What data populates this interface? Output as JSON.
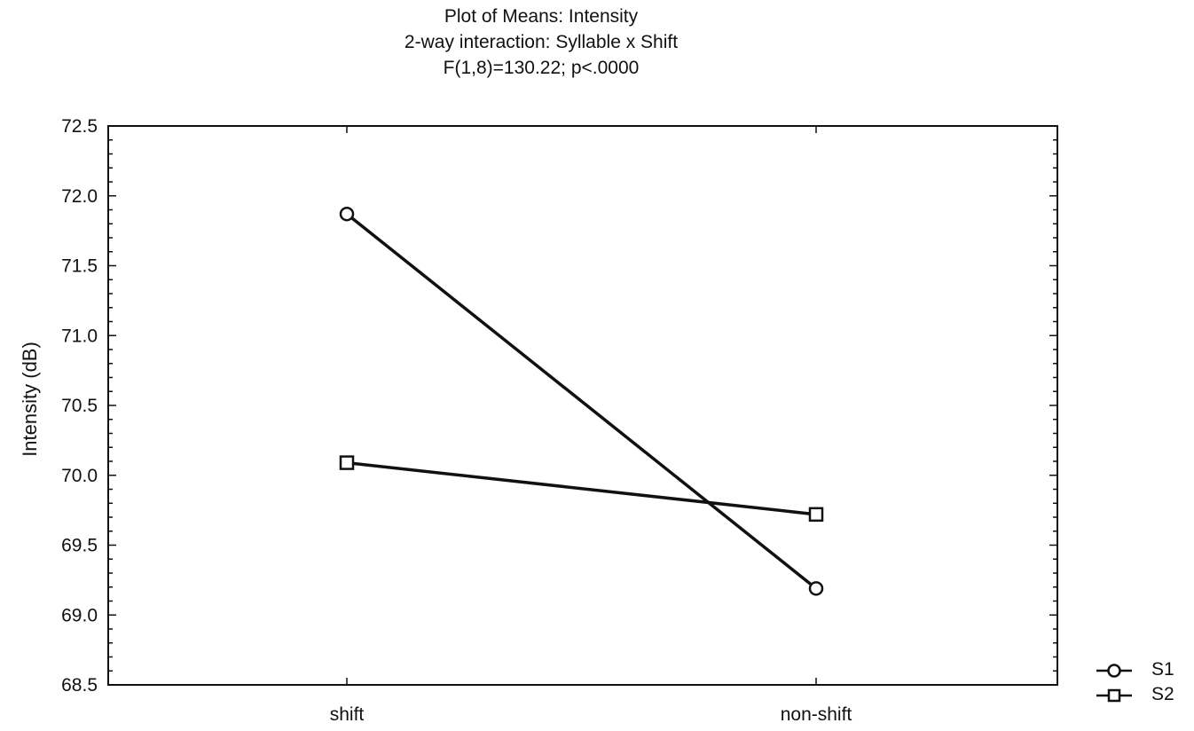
{
  "chart_data": {
    "type": "line",
    "title": "Plot of Means: Intensity",
    "subtitle": "2-way interaction: Syllable x Shift",
    "annotation": "F(1,8)=130.22; p<.0000",
    "xlabel": "",
    "ylabel": "Intensity (dB)",
    "categories": [
      "shift",
      "non-shift"
    ],
    "ylim": [
      68.5,
      72.5
    ],
    "yticks": [
      "72.5",
      "72.0",
      "71.5",
      "71.0",
      "70.5",
      "70.0",
      "69.5",
      "69.0",
      "68.5"
    ],
    "series": [
      {
        "name": "S1",
        "marker": "circle",
        "values": [
          71.87,
          69.19
        ]
      },
      {
        "name": "S2",
        "marker": "square",
        "values": [
          70.09,
          69.72
        ]
      }
    ],
    "grid": false,
    "legend_position": "bottom-right",
    "colors": {
      "line": "#111111",
      "marker_fill": "#ffffff",
      "background": "#ffffff"
    }
  }
}
